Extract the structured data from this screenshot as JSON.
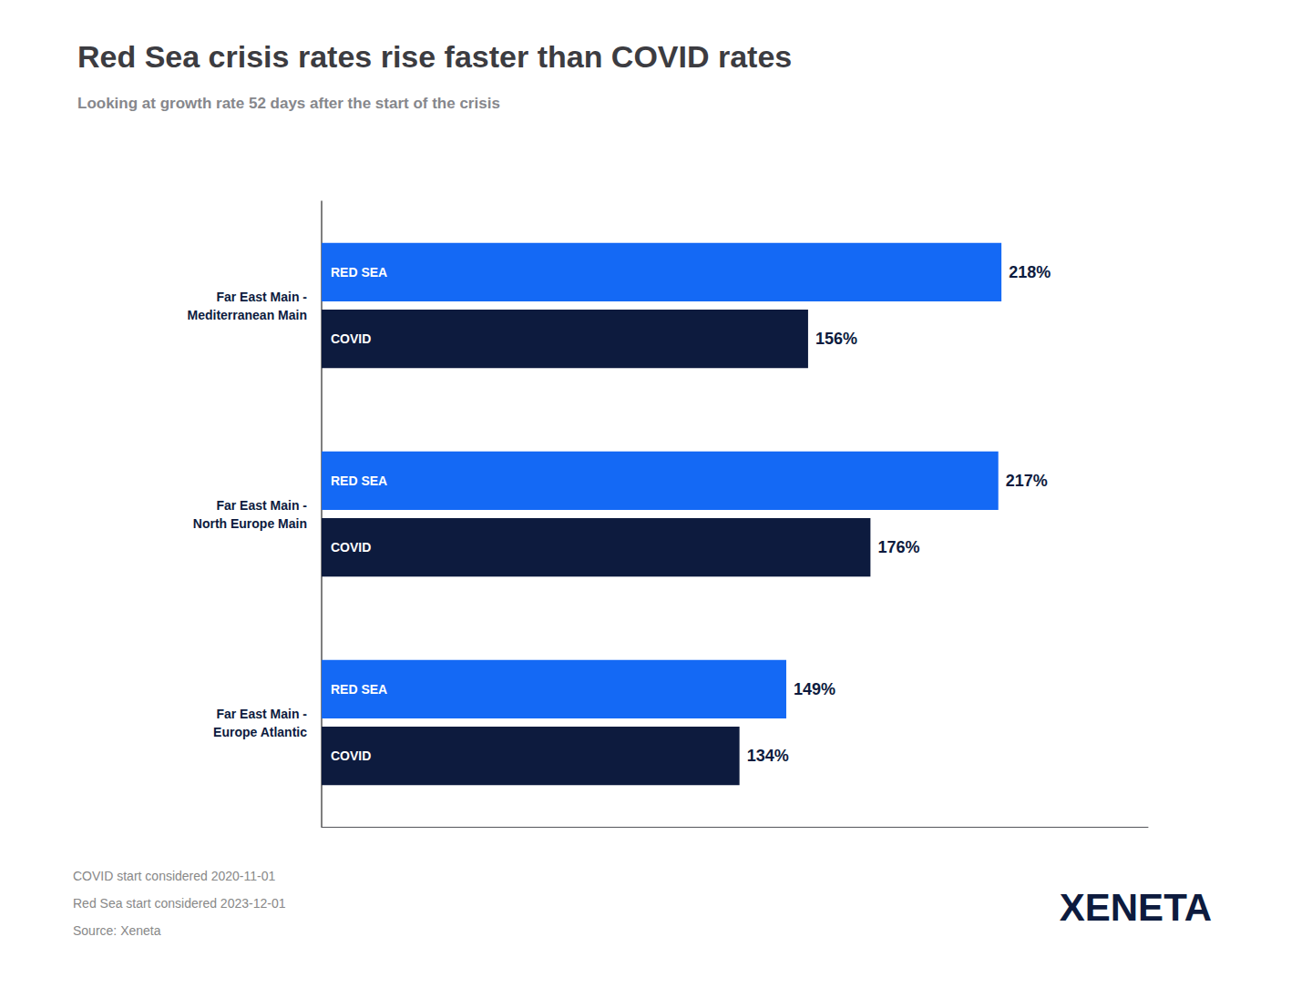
{
  "chart_data": {
    "type": "bar",
    "orientation": "horizontal",
    "title": "Red Sea crisis rates rise faster than COVID rates",
    "subtitle": "Looking at growth rate 52 days after the start of the crisis",
    "categories": [
      "Far East Main -\nMediterranean Main",
      "Far East Main -\nNorth Europe Main",
      "Far East Main -\nEurope Atlantic"
    ],
    "series": [
      {
        "name": "RED SEA",
        "color": "#1469F5",
        "values": [
          218,
          217,
          149
        ],
        "value_labels": [
          "218%",
          "217%",
          "149%"
        ]
      },
      {
        "name": "COVID",
        "color": "#0D1B3E",
        "values": [
          156,
          176,
          134
        ],
        "value_labels": [
          "156%",
          "176%",
          "134%"
        ]
      }
    ],
    "xlim": [
      0,
      265
    ],
    "data_labels": true,
    "tick_labels": "y",
    "grid": false,
    "annotations": [
      "COVID start considered 2020-11-01",
      "Red Sea start considered 2023-12-01",
      "Source: Xeneta",
      "XENETA"
    ]
  }
}
